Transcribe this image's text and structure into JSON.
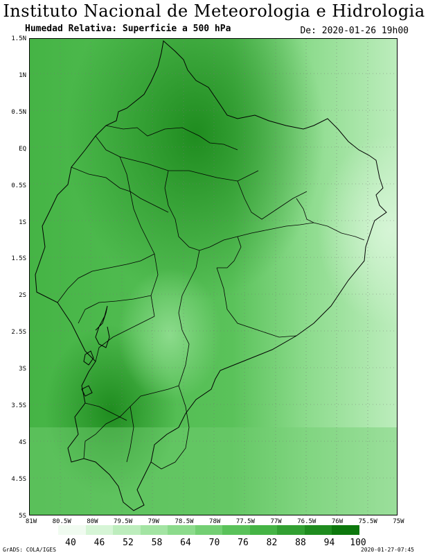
{
  "header": {
    "title": "Instituto Nacional de Meteorologia e Hidrologia",
    "subtitle": "Humedad Relativa: Superficie a 500 hPa",
    "datetime": "De: 2020-01-26 19h00"
  },
  "axes": {
    "y_labels": [
      "1.5N",
      "1N",
      "0.5N",
      "EQ",
      "0.5S",
      "1S",
      "1.5S",
      "2S",
      "2.5S",
      "3S",
      "3.5S",
      "4S",
      "4.5S",
      "5S"
    ],
    "x_labels": [
      "81W",
      "80.5W",
      "80W",
      "79.5W",
      "79W",
      "78.5W",
      "78W",
      "77.5W",
      "77W",
      "76.5W",
      "76W",
      "75.5W",
      "75W"
    ]
  },
  "legend": {
    "labels": [
      "40",
      "46",
      "52",
      "58",
      "64",
      "70",
      "76",
      "82",
      "88",
      "94",
      "100"
    ],
    "colors": [
      "#f0fbf0",
      "#d6f5d6",
      "#bdedbd",
      "#a3e4a3",
      "#8cdb8c",
      "#73cf73",
      "#5ac25a",
      "#45b445",
      "#32a032",
      "#1f8c1f",
      "#0d780d"
    ]
  },
  "footer": {
    "left": "GrADS: COLA/IGES",
    "right": "2020-01-27-07:45"
  }
}
